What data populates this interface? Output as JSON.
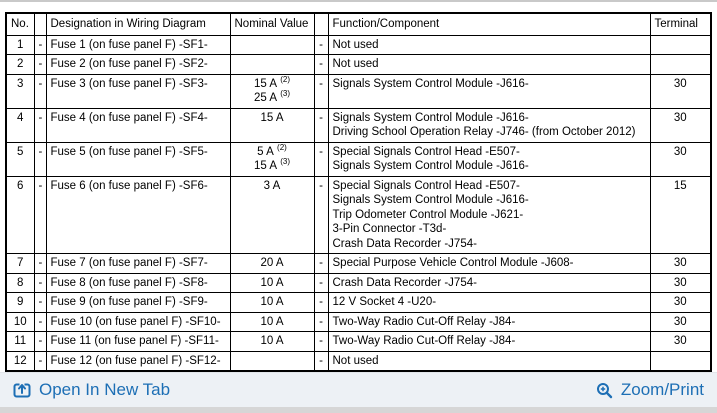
{
  "table": {
    "headers": [
      "No.",
      "",
      "Designation in Wiring Diagram",
      "Nominal Value",
      "",
      "Function/Component",
      "Terminal"
    ],
    "rows": [
      {
        "no": "1",
        "dash1": "-",
        "designation": "Fuse 1 (on fuse panel F) -SF1-",
        "nominal": [],
        "dash2": "-",
        "functions": [
          "Not used"
        ],
        "terminal": ""
      },
      {
        "no": "2",
        "dash1": "-",
        "designation": "Fuse 2 (on fuse panel F) -SF2-",
        "nominal": [],
        "dash2": "-",
        "functions": [
          "Not used"
        ],
        "terminal": ""
      },
      {
        "no": "3",
        "dash1": "-",
        "designation": "Fuse 3 (on fuse panel F) -SF3-",
        "nominal": [
          {
            "text": "15 A",
            "sup": "(2)"
          },
          {
            "text": "25 A",
            "sup": "(3)"
          }
        ],
        "dash2": "-",
        "functions": [
          "Signals System Control Module -J616-"
        ],
        "terminal": "30"
      },
      {
        "no": "4",
        "dash1": "-",
        "designation": "Fuse 4 (on fuse panel F) -SF4-",
        "nominal": [
          {
            "text": "15 A",
            "sup": ""
          }
        ],
        "dash2": "-",
        "functions": [
          "Signals System Control Module -J616-",
          "Driving School Operation Relay -J746- (from October 2012)"
        ],
        "terminal": "30"
      },
      {
        "no": "5",
        "dash1": "-",
        "designation": "Fuse 5 (on fuse panel F) -SF5-",
        "nominal": [
          {
            "text": "5 A",
            "sup": "(2)"
          },
          {
            "text": "15 A",
            "sup": "(3)"
          }
        ],
        "dash2": "-",
        "functions": [
          "Special Signals Control Head -E507-",
          "Signals System Control Module -J616-"
        ],
        "terminal": "30"
      },
      {
        "no": "6",
        "dash1": "-",
        "designation": "Fuse 6 (on fuse panel F) -SF6-",
        "nominal": [
          {
            "text": "3 A",
            "sup": ""
          }
        ],
        "dash2": "-",
        "functions": [
          "Special Signals Control Head -E507-",
          "Signals System Control Module -J616-",
          "Trip Odometer Control Module -J621-",
          "3-Pin Connector -T3d-",
          "Crash Data Recorder -J754-"
        ],
        "terminal": "15"
      },
      {
        "no": "7",
        "dash1": "-",
        "designation": "Fuse 7 (on fuse panel F) -SF7-",
        "nominal": [
          {
            "text": "20 A",
            "sup": ""
          }
        ],
        "dash2": "-",
        "functions": [
          "Special Purpose Vehicle Control Module -J608-"
        ],
        "terminal": "30"
      },
      {
        "no": "8",
        "dash1": "-",
        "designation": "Fuse 8 (on fuse panel F) -SF8-",
        "nominal": [
          {
            "text": "10 A",
            "sup": ""
          }
        ],
        "dash2": "-",
        "functions": [
          "Crash Data Recorder -J754-"
        ],
        "terminal": "30"
      },
      {
        "no": "9",
        "dash1": "-",
        "designation": "Fuse 9 (on fuse panel F) -SF9-",
        "nominal": [
          {
            "text": "10 A",
            "sup": ""
          }
        ],
        "dash2": "-",
        "functions": [
          "12 V Socket 4 -U20-"
        ],
        "terminal": "30"
      },
      {
        "no": "10",
        "dash1": "-",
        "designation": "Fuse 10 (on fuse panel F) -SF10-",
        "nominal": [
          {
            "text": "10 A",
            "sup": ""
          }
        ],
        "dash2": "-",
        "functions": [
          "Two-Way Radio Cut-Off Relay -J84-"
        ],
        "terminal": "30"
      },
      {
        "no": "11",
        "dash1": "-",
        "designation": "Fuse 11 (on fuse panel F) -SF11-",
        "nominal": [
          {
            "text": "10 A",
            "sup": ""
          }
        ],
        "dash2": "-",
        "functions": [
          "Two-Way Radio Cut-Off Relay -J84-"
        ],
        "terminal": "30"
      },
      {
        "no": "12",
        "dash1": "-",
        "designation": "Fuse 12 (on fuse panel F) -SF12-",
        "nominal": [],
        "dash2": "-",
        "functions": [
          "Not used"
        ],
        "terminal": ""
      }
    ]
  },
  "footer": {
    "open_in_new_tab_label": "Open In New Tab",
    "zoom_print_label": "Zoom/Print"
  },
  "colors": {
    "link_blue": "#1d6fb5",
    "footer_background": "#edf1f5",
    "table_border": "#000000"
  }
}
